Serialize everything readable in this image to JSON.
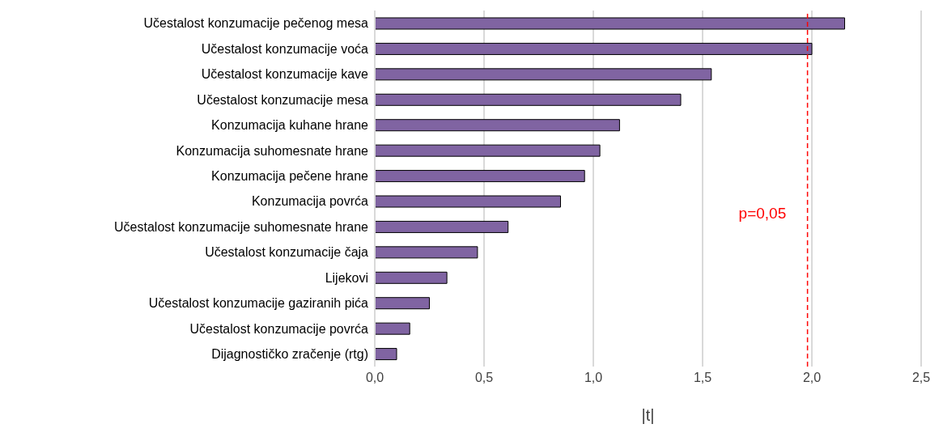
{
  "chart_data": {
    "type": "bar",
    "orientation": "horizontal",
    "xlabel": "|t|",
    "categories": [
      "Učestalost konzumacije pečenog mesa",
      "Učestalost konzumacije voća",
      "Učestalost konzumacije kave",
      "Učestalost konzumacije mesa",
      "Konzumacija kuhane hrane",
      "Konzumacija suhomesnate hrane",
      "Konzumacija pečene hrane",
      "Konzumacija povrća",
      "Učestalost konzumacije suhomesnate hrane",
      "Učestalost konzumacije čaja",
      "Lijekovi",
      "Učestalost konzumacije gaziranih pića",
      "Učestalost konzumacije povrća",
      "Dijagnostičko zračenje (rtg)"
    ],
    "values": [
      2.15,
      2.0,
      1.54,
      1.4,
      1.12,
      1.03,
      0.96,
      0.85,
      0.61,
      0.47,
      0.33,
      0.25,
      0.16,
      0.1
    ],
    "color": "#8064a2",
    "xlim": [
      0,
      2.5
    ],
    "xticks": [
      {
        "value": 0,
        "label": "0,0"
      },
      {
        "value": 0.5,
        "label": "0,5"
      },
      {
        "value": 1,
        "label": "1,0"
      },
      {
        "value": 1.5,
        "label": "1,5"
      },
      {
        "value": 2,
        "label": "2,0"
      },
      {
        "value": 2.5,
        "label": "2,5"
      }
    ],
    "grid": "x",
    "annotations": [
      "p=0,05"
    ],
    "ref_lines": [
      {
        "axis": "x",
        "value": 1.98,
        "color": "#ff0000",
        "line_style": "dashed"
      }
    ]
  }
}
